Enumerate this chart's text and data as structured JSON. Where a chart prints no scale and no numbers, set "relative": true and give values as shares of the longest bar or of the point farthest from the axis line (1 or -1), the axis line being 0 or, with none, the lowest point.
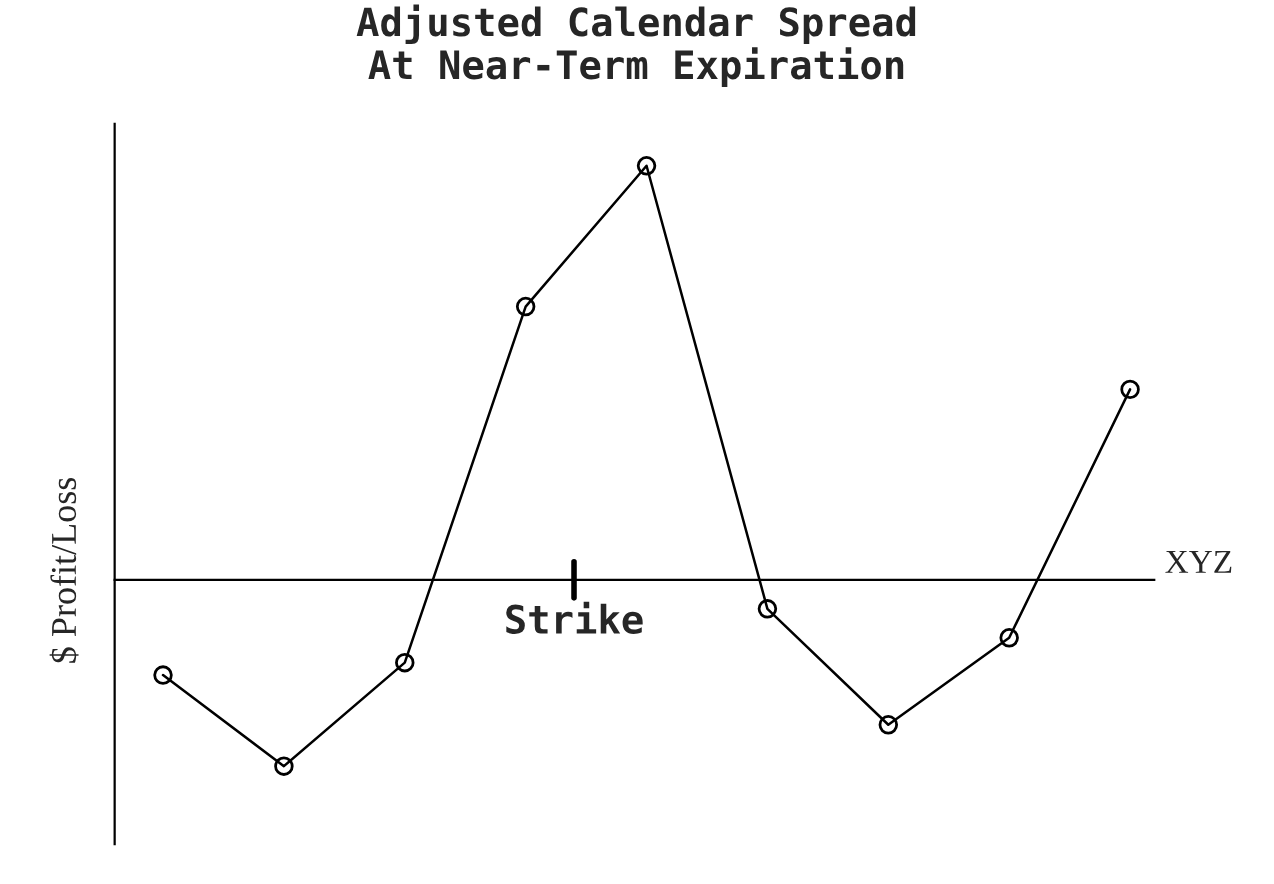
{
  "chart_data": {
    "type": "line",
    "title": "Adjusted Calendar Spread\nAt Near-Term Expiration",
    "xlabel": "XYZ",
    "ylabel": "$ Profit/Loss",
    "relative": true,
    "marker": "circle",
    "line_style": "solid",
    "legend": false,
    "categories": [
      null,
      null,
      null,
      null,
      null,
      null,
      null,
      null,
      null
    ],
    "series": [
      {
        "color": "#000000",
        "values": [
          -0.23,
          -0.45,
          -0.2,
          0.66,
          1,
          -0.07,
          -0.35,
          -0.14,
          0.46
        ]
      }
    ],
    "annotations": [
      "Strike"
    ]
  }
}
